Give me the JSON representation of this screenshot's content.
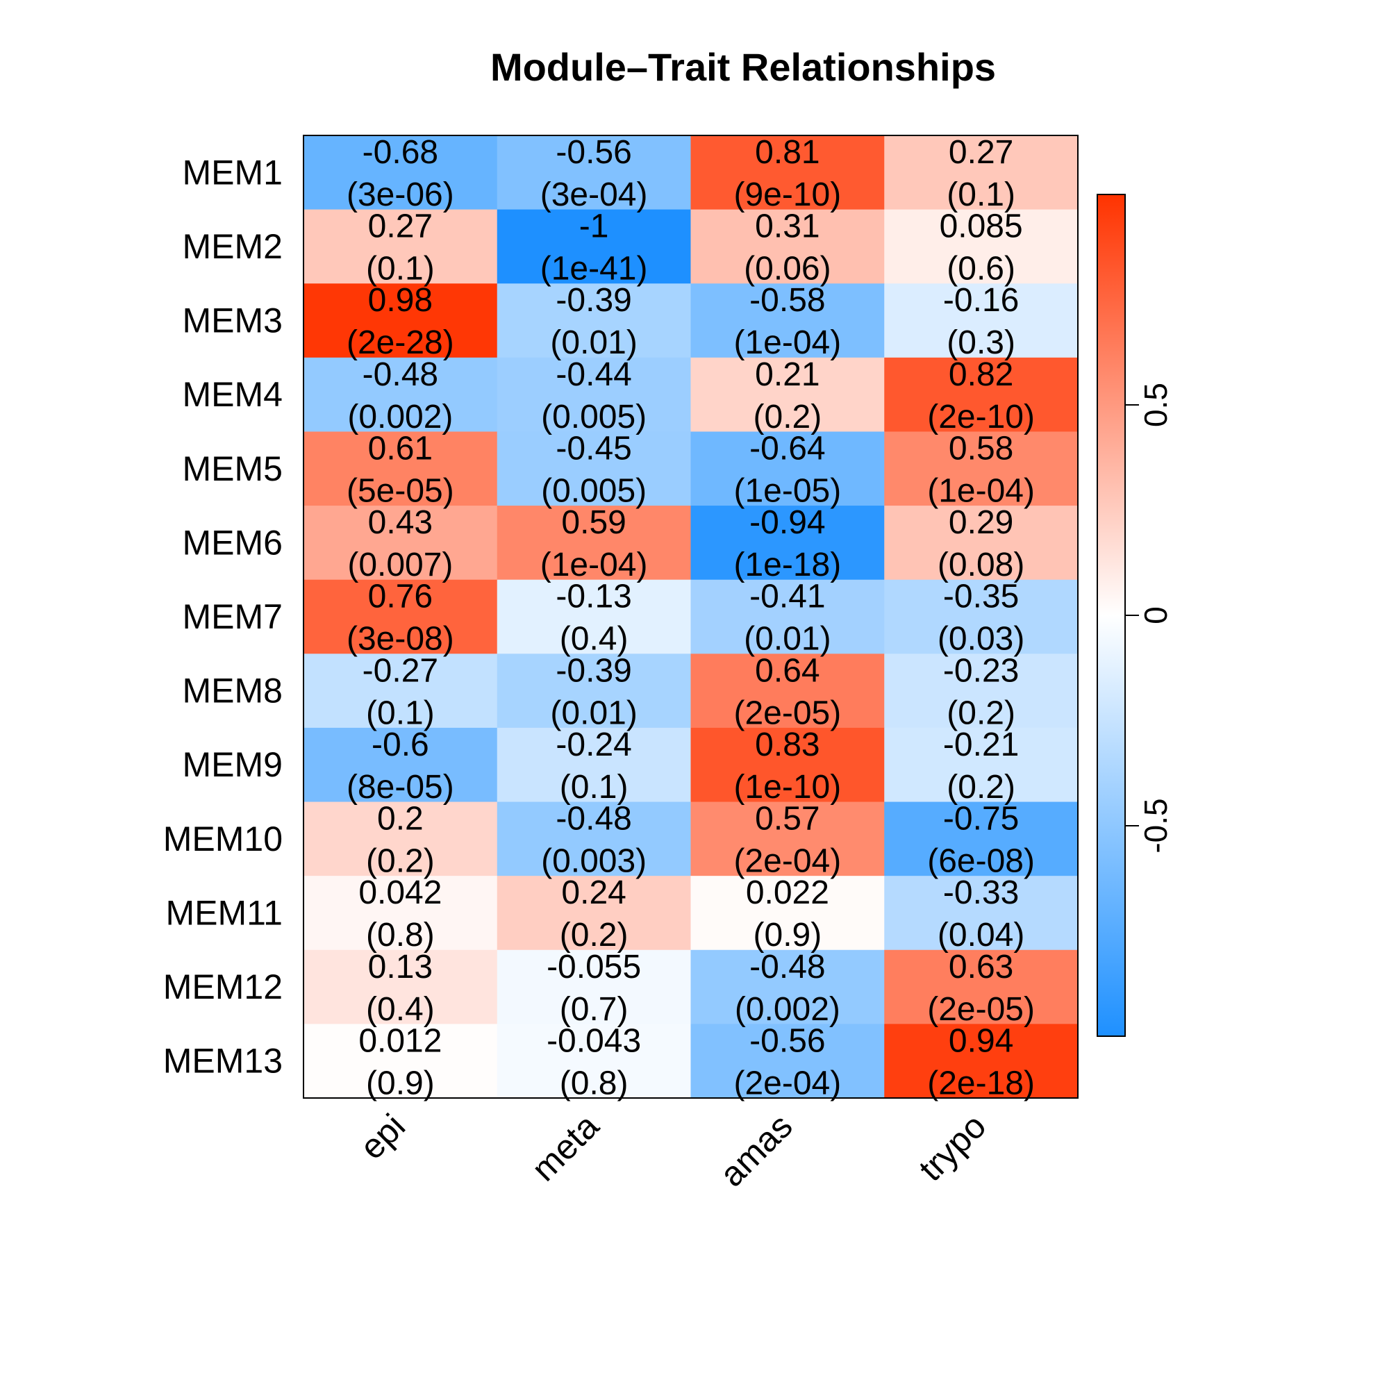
{
  "chart_data": {
    "type": "heatmap",
    "title": "Module–Trait Relationships",
    "rows": [
      "MEM1",
      "MEM2",
      "MEM3",
      "MEM4",
      "MEM5",
      "MEM6",
      "MEM7",
      "MEM8",
      "MEM9",
      "MEM10",
      "MEM11",
      "MEM12",
      "MEM13"
    ],
    "columns": [
      "epi",
      "meta",
      "amas",
      "trypo"
    ],
    "values": [
      [
        -0.68,
        -0.56,
        0.81,
        0.27
      ],
      [
        0.27,
        -1,
        0.31,
        0.085
      ],
      [
        0.98,
        -0.39,
        -0.58,
        -0.16
      ],
      [
        -0.48,
        -0.44,
        0.21,
        0.82
      ],
      [
        0.61,
        -0.45,
        -0.64,
        0.58
      ],
      [
        0.43,
        0.59,
        -0.94,
        0.29
      ],
      [
        0.76,
        -0.13,
        -0.41,
        -0.35
      ],
      [
        -0.27,
        -0.39,
        0.64,
        -0.23
      ],
      [
        -0.6,
        -0.24,
        0.83,
        -0.21
      ],
      [
        0.2,
        -0.48,
        0.57,
        -0.75
      ],
      [
        0.042,
        0.24,
        0.022,
        -0.33
      ],
      [
        0.13,
        -0.055,
        -0.48,
        0.63
      ],
      [
        0.012,
        -0.043,
        -0.56,
        0.94
      ]
    ],
    "value_labels": [
      [
        "-0.68",
        "-0.56",
        "0.81",
        "0.27"
      ],
      [
        "0.27",
        "-1",
        "0.31",
        "0.085"
      ],
      [
        "0.98",
        "-0.39",
        "-0.58",
        "-0.16"
      ],
      [
        "-0.48",
        "-0.44",
        "0.21",
        "0.82"
      ],
      [
        "0.61",
        "-0.45",
        "-0.64",
        "0.58"
      ],
      [
        "0.43",
        "0.59",
        "-0.94",
        "0.29"
      ],
      [
        "0.76",
        "-0.13",
        "-0.41",
        "-0.35"
      ],
      [
        "-0.27",
        "-0.39",
        "0.64",
        "-0.23"
      ],
      [
        "-0.6",
        "-0.24",
        "0.83",
        "-0.21"
      ],
      [
        "0.2",
        "-0.48",
        "0.57",
        "-0.75"
      ],
      [
        "0.042",
        "0.24",
        "0.022",
        "-0.33"
      ],
      [
        "0.13",
        "-0.055",
        "-0.48",
        "0.63"
      ],
      [
        "0.012",
        "-0.043",
        "-0.56",
        "0.94"
      ]
    ],
    "pvalue_labels": [
      [
        "(3e-06)",
        "(3e-04)",
        "(9e-10)",
        "(0.1)"
      ],
      [
        "(0.1)",
        "(1e-41)",
        "(0.06)",
        "(0.6)"
      ],
      [
        "(2e-28)",
        "(0.01)",
        "(1e-04)",
        "(0.3)"
      ],
      [
        "(0.002)",
        "(0.005)",
        "(0.2)",
        "(2e-10)"
      ],
      [
        "(5e-05)",
        "(0.005)",
        "(1e-05)",
        "(1e-04)"
      ],
      [
        "(0.007)",
        "(1e-04)",
        "(1e-18)",
        "(0.08)"
      ],
      [
        "(3e-08)",
        "(0.4)",
        "(0.01)",
        "(0.03)"
      ],
      [
        "(0.1)",
        "(0.01)",
        "(2e-05)",
        "(0.2)"
      ],
      [
        "(8e-05)",
        "(0.1)",
        "(1e-10)",
        "(0.2)"
      ],
      [
        "(0.2)",
        "(0.003)",
        "(2e-04)",
        "(6e-08)"
      ],
      [
        "(0.8)",
        "(0.2)",
        "(0.9)",
        "(0.04)"
      ],
      [
        "(0.4)",
        "(0.7)",
        "(0.002)",
        "(2e-05)"
      ],
      [
        "(0.9)",
        "(0.8)",
        "(2e-04)",
        "(2e-18)"
      ]
    ],
    "color_scale": {
      "min": -1,
      "max": 1,
      "low_color": "#1E90FF",
      "mid_color": "#FFFFFF",
      "high_color": "#FF3300",
      "legend_ticks": [
        -0.5,
        0,
        0.5
      ],
      "legend_tick_labels": [
        "-0.5",
        "0",
        "0.5"
      ],
      "legend_placement": "right"
    },
    "grid": false
  }
}
